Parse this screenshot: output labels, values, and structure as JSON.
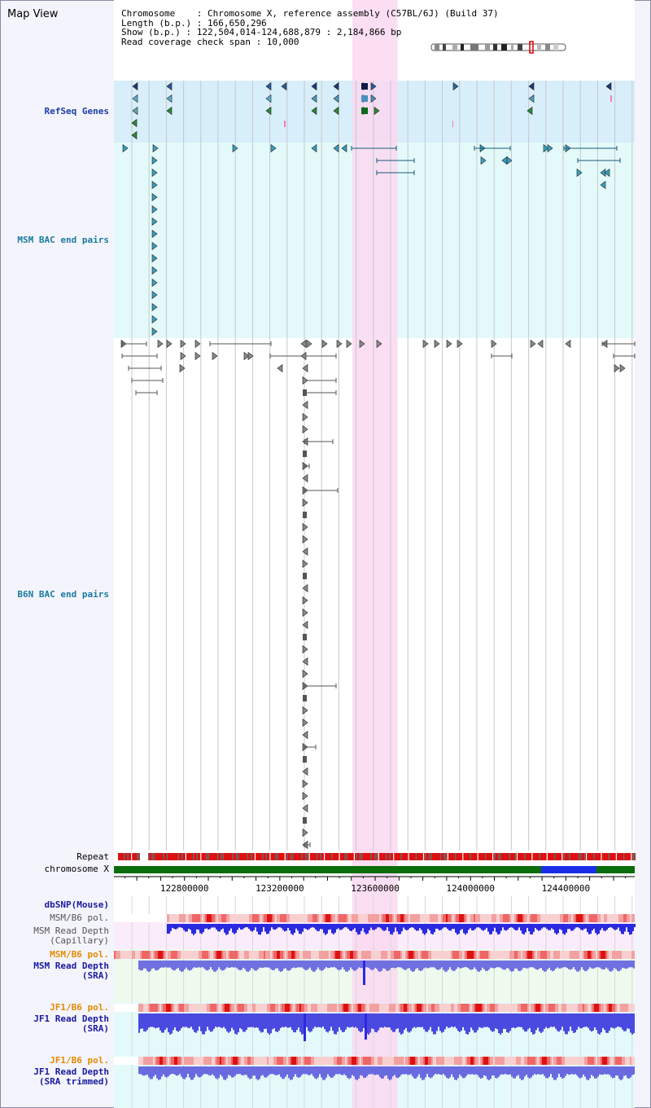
{
  "title": "Map View",
  "info": {
    "chromosome": "Chromosome    : Chromosome X, reference assembly (C57BL/6J) (Build 37)",
    "length": "Length (b.p.) : 166,650,296",
    "show": "Show (b.p.) : 122,504,014-124,688,879 : 2,184,866 bp",
    "coverage": "Read coverage check span : 10,000"
  },
  "tracks": {
    "refseq": "RefSeq Genes",
    "msm_bac": "MSM BAC end pairs",
    "b6n_bac": "B6N BAC end pairs",
    "repeat": "Repeat",
    "chromosome": "chromosome X",
    "dbsnp": "dbSNP(Mouse)",
    "msm_pol_1": "MSM/B6 pol.",
    "msm_depth_cap": "MSM Read Depth\n(Capillary)",
    "msm_pol_2": "MSM/B6 pol.",
    "msm_depth_sra": "MSM Read Depth\n(SRA)",
    "jf1_pol_1": "JF1/B6 pol.",
    "jf1_depth_sra": "JF1 Read Depth\n(SRA)",
    "jf1_pol_2": "JF1/B6 pol.",
    "jf1_depth_trim": "JF1 Read Depth\n(SRA trimmed)"
  },
  "axis": {
    "start": 122504014,
    "end": 124688879,
    "ticks": [
      "122800000",
      "123200000",
      "123600000",
      "124000000",
      "124400000"
    ]
  },
  "highlight": {
    "start": 123504000,
    "end": 123694000
  },
  "colors": {
    "refseq_band": "#d8eefa",
    "msm_band": "#e4fafa",
    "highlight": "#fad8f0",
    "chromosome_bar": "#0a6e0a",
    "chromosome_gap": "#1a2ee8",
    "repeat_red": "#dd1111",
    "depth_blue": "#3b3bea",
    "pol_pink": "#f3a0a0"
  }
}
